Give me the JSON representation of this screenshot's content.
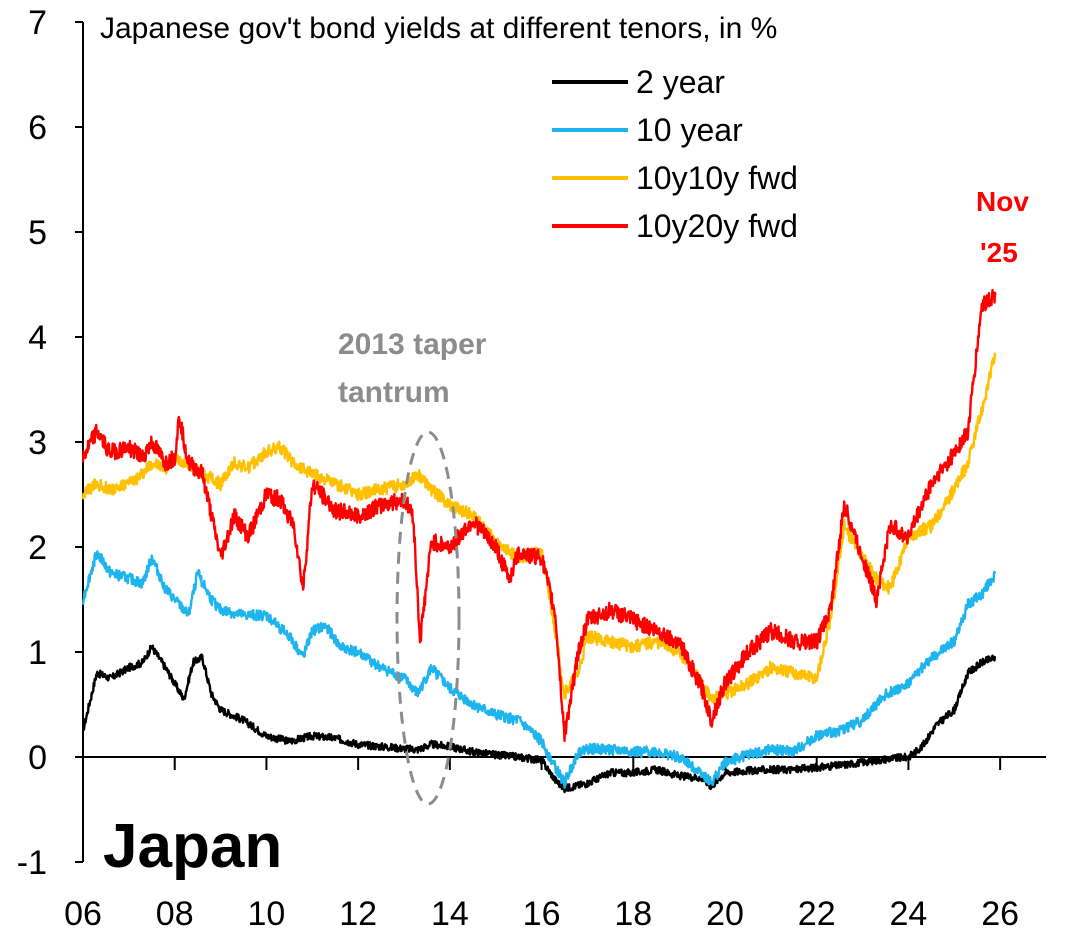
{
  "chart_data": {
    "type": "line",
    "title": "Japanese gov't bond yields at different tenors, in %",
    "country_label": "Japan",
    "ylim": [
      -1,
      7
    ],
    "xlim": [
      2006,
      2027
    ],
    "y_ticks": [
      -1,
      0,
      1,
      2,
      3,
      4,
      5,
      6,
      7
    ],
    "y_tick_labels": [
      "-1",
      "0",
      "1",
      "2",
      "3",
      "4",
      "5",
      "6",
      "7"
    ],
    "x_ticks": [
      2006,
      2008,
      2010,
      2012,
      2014,
      2016,
      2018,
      2020,
      2022,
      2024,
      2026
    ],
    "x_tick_labels": [
      "06",
      "08",
      "10",
      "12",
      "14",
      "16",
      "18",
      "20",
      "22",
      "24",
      "26"
    ],
    "legend_position": "top-right",
    "series": [
      {
        "name": "2 year",
        "color": "#000000",
        "x": [
          2006.0,
          2006.3,
          2006.6,
          2007.0,
          2007.3,
          2007.5,
          2007.8,
          2008.0,
          2008.2,
          2008.4,
          2008.6,
          2008.8,
          2009.0,
          2009.5,
          2010.0,
          2010.5,
          2011.0,
          2011.5,
          2012.0,
          2012.5,
          2013.0,
          2013.3,
          2013.6,
          2014.0,
          2014.5,
          2015.0,
          2015.5,
          2016.0,
          2016.3,
          2016.5,
          2017.0,
          2017.5,
          2018.0,
          2018.5,
          2019.0,
          2019.5,
          2019.7,
          2020.0,
          2020.5,
          2021.0,
          2021.5,
          2022.0,
          2022.5,
          2023.0,
          2023.5,
          2024.0,
          2024.3,
          2024.6,
          2025.0,
          2025.3,
          2025.6,
          2025.9
        ],
        "values": [
          0.25,
          0.8,
          0.75,
          0.85,
          0.9,
          1.05,
          0.85,
          0.7,
          0.55,
          0.9,
          0.95,
          0.6,
          0.45,
          0.35,
          0.2,
          0.15,
          0.2,
          0.18,
          0.12,
          0.1,
          0.08,
          0.07,
          0.12,
          0.1,
          0.05,
          0.02,
          0.0,
          -0.03,
          -0.22,
          -0.3,
          -0.25,
          -0.15,
          -0.15,
          -0.12,
          -0.18,
          -0.2,
          -0.28,
          -0.15,
          -0.13,
          -0.12,
          -0.12,
          -0.1,
          -0.08,
          -0.05,
          -0.02,
          0.0,
          0.1,
          0.3,
          0.45,
          0.8,
          0.9,
          0.95
        ]
      },
      {
        "name": "10 year",
        "color": "#1eb4ee",
        "x": [
          2006.0,
          2006.3,
          2006.6,
          2007.0,
          2007.3,
          2007.5,
          2007.8,
          2008.0,
          2008.3,
          2008.5,
          2008.8,
          2009.0,
          2009.5,
          2010.0,
          2010.5,
          2010.8,
          2011.0,
          2011.3,
          2011.6,
          2012.0,
          2012.5,
          2013.0,
          2013.3,
          2013.6,
          2014.0,
          2014.5,
          2015.0,
          2015.5,
          2016.0,
          2016.3,
          2016.5,
          2016.8,
          2017.0,
          2017.5,
          2018.0,
          2018.5,
          2019.0,
          2019.5,
          2019.7,
          2020.0,
          2020.5,
          2021.0,
          2021.5,
          2022.0,
          2022.5,
          2023.0,
          2023.5,
          2024.0,
          2024.5,
          2025.0,
          2025.3,
          2025.6,
          2025.9
        ],
        "values": [
          1.5,
          1.95,
          1.75,
          1.7,
          1.65,
          1.9,
          1.6,
          1.5,
          1.35,
          1.75,
          1.5,
          1.4,
          1.35,
          1.35,
          1.15,
          0.95,
          1.2,
          1.25,
          1.05,
          1.0,
          0.85,
          0.75,
          0.6,
          0.85,
          0.65,
          0.5,
          0.4,
          0.35,
          0.15,
          -0.1,
          -0.25,
          0.05,
          0.08,
          0.07,
          0.05,
          0.05,
          0.0,
          -0.15,
          -0.25,
          -0.05,
          0.02,
          0.07,
          0.05,
          0.2,
          0.25,
          0.35,
          0.6,
          0.7,
          0.95,
          1.1,
          1.45,
          1.55,
          1.75
        ]
      },
      {
        "name": "10y10y fwd",
        "color": "#ffc000",
        "x": [
          2006.0,
          2006.3,
          2006.6,
          2007.0,
          2007.3,
          2007.5,
          2007.8,
          2008.0,
          2008.3,
          2008.6,
          2009.0,
          2009.3,
          2009.6,
          2010.0,
          2010.3,
          2010.6,
          2011.0,
          2011.5,
          2012.0,
          2012.5,
          2013.0,
          2013.3,
          2013.6,
          2014.0,
          2014.5,
          2015.0,
          2015.5,
          2016.0,
          2016.3,
          2016.5,
          2016.8,
          2017.0,
          2017.5,
          2018.0,
          2018.5,
          2019.0,
          2019.5,
          2019.7,
          2020.0,
          2020.5,
          2021.0,
          2021.5,
          2022.0,
          2022.3,
          2022.6,
          2023.0,
          2023.3,
          2023.6,
          2024.0,
          2024.5,
          2025.0,
          2025.3,
          2025.6,
          2025.9
        ],
        "values": [
          2.5,
          2.6,
          2.55,
          2.6,
          2.7,
          2.8,
          2.75,
          2.85,
          2.8,
          2.7,
          2.6,
          2.8,
          2.75,
          2.9,
          2.95,
          2.8,
          2.7,
          2.6,
          2.5,
          2.55,
          2.6,
          2.7,
          2.55,
          2.4,
          2.3,
          2.05,
          1.9,
          1.95,
          1.2,
          0.6,
          0.8,
          1.15,
          1.1,
          1.05,
          1.1,
          1.0,
          0.7,
          0.55,
          0.6,
          0.7,
          0.85,
          0.8,
          0.75,
          1.3,
          2.2,
          1.9,
          1.7,
          1.6,
          2.1,
          2.2,
          2.55,
          2.8,
          3.3,
          3.85
        ]
      },
      {
        "name": "10y20y fwd",
        "color": "#ff0000",
        "x": [
          2006.0,
          2006.3,
          2006.6,
          2007.0,
          2007.3,
          2007.5,
          2007.8,
          2008.0,
          2008.1,
          2008.3,
          2008.6,
          2009.0,
          2009.3,
          2009.6,
          2010.0,
          2010.3,
          2010.6,
          2010.8,
          2011.0,
          2011.5,
          2012.0,
          2012.5,
          2013.0,
          2013.2,
          2013.35,
          2013.6,
          2014.0,
          2014.5,
          2015.0,
          2015.3,
          2015.5,
          2016.0,
          2016.3,
          2016.5,
          2016.8,
          2017.0,
          2017.5,
          2018.0,
          2018.5,
          2019.0,
          2019.5,
          2019.7,
          2020.0,
          2020.5,
          2021.0,
          2021.5,
          2022.0,
          2022.3,
          2022.6,
          2023.0,
          2023.3,
          2023.6,
          2024.0,
          2024.5,
          2025.0,
          2025.3,
          2025.6,
          2025.9
        ],
        "values": [
          2.85,
          3.1,
          2.9,
          2.95,
          2.85,
          3.0,
          2.8,
          2.85,
          3.25,
          2.8,
          2.7,
          1.9,
          2.3,
          2.1,
          2.5,
          2.45,
          2.2,
          1.6,
          2.6,
          2.35,
          2.3,
          2.4,
          2.45,
          2.3,
          1.1,
          2.05,
          2.0,
          2.25,
          2.0,
          1.7,
          1.95,
          1.9,
          1.35,
          0.2,
          1.0,
          1.3,
          1.4,
          1.3,
          1.2,
          1.1,
          0.65,
          0.35,
          0.7,
          1.0,
          1.2,
          1.1,
          1.1,
          1.4,
          2.4,
          1.9,
          1.5,
          2.2,
          2.1,
          2.6,
          2.9,
          3.1,
          4.3,
          4.4
        ]
      }
    ],
    "annotations": {
      "taper_tantrum": [
        "2013 taper",
        "tantrum"
      ],
      "latest": [
        "Nov",
        "'25"
      ]
    }
  }
}
